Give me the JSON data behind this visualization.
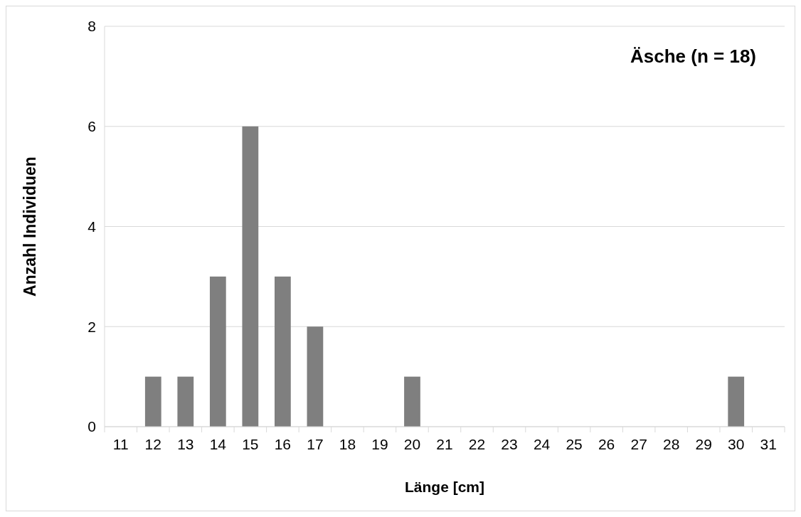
{
  "chart_data": {
    "type": "bar",
    "title": "Äsche (n = 18)",
    "xlabel": "Länge [cm]",
    "ylabel": "Anzahl Individuen",
    "categories": [
      "11",
      "12",
      "13",
      "14",
      "15",
      "16",
      "17",
      "18",
      "19",
      "20",
      "21",
      "22",
      "23",
      "24",
      "25",
      "26",
      "27",
      "28",
      "29",
      "30",
      "31"
    ],
    "values": [
      0,
      1,
      1,
      3,
      6,
      3,
      2,
      0,
      0,
      1,
      0,
      0,
      0,
      0,
      0,
      0,
      0,
      0,
      0,
      1,
      0
    ],
    "color": "#7f7f7f",
    "ylim": [
      0,
      8
    ],
    "yticks": [
      0,
      2,
      4,
      6,
      8
    ],
    "grid": "y"
  }
}
